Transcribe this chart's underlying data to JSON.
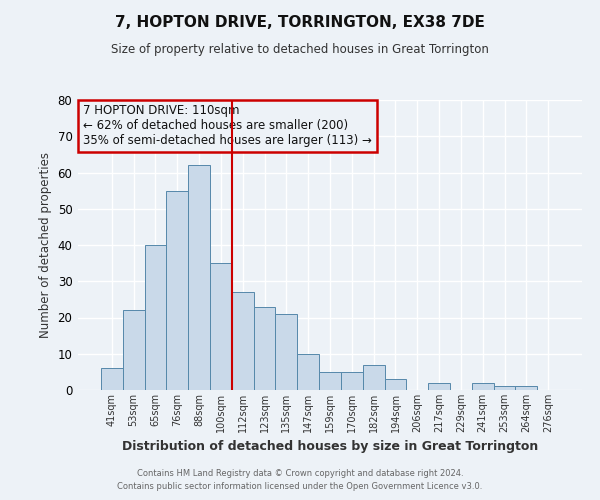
{
  "title": "7, HOPTON DRIVE, TORRINGTON, EX38 7DE",
  "subtitle": "Size of property relative to detached houses in Great Torrington",
  "xlabel": "Distribution of detached houses by size in Great Torrington",
  "ylabel": "Number of detached properties",
  "bar_labels": [
    "41sqm",
    "53sqm",
    "65sqm",
    "76sqm",
    "88sqm",
    "100sqm",
    "112sqm",
    "123sqm",
    "135sqm",
    "147sqm",
    "159sqm",
    "170sqm",
    "182sqm",
    "194sqm",
    "206sqm",
    "217sqm",
    "229sqm",
    "241sqm",
    "253sqm",
    "264sqm",
    "276sqm"
  ],
  "bar_values": [
    6,
    22,
    40,
    55,
    62,
    35,
    27,
    23,
    21,
    10,
    5,
    5,
    7,
    3,
    0,
    2,
    0,
    2,
    1,
    1,
    0
  ],
  "bar_color": "#c9d9e9",
  "bar_edge_color": "#5588aa",
  "vline_x": 5.5,
  "vline_color": "#cc0000",
  "ylim": [
    0,
    80
  ],
  "yticks": [
    0,
    10,
    20,
    30,
    40,
    50,
    60,
    70,
    80
  ],
  "annotation_line1": "7 HOPTON DRIVE: 110sqm",
  "annotation_line2": "← 62% of detached houses are smaller (200)",
  "annotation_line3": "35% of semi-detached houses are larger (113) →",
  "annotation_box_color": "#cc0000",
  "footer_line1": "Contains HM Land Registry data © Crown copyright and database right 2024.",
  "footer_line2": "Contains public sector information licensed under the Open Government Licence v3.0.",
  "background_color": "#edf2f7",
  "grid_color": "#ffffff"
}
